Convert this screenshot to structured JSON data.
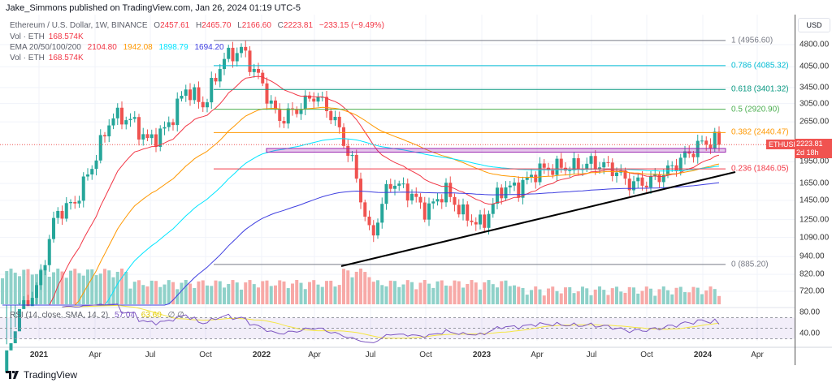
{
  "publisher_line": "Jake_Simmons published on TradingView.com, Jan 26, 2024 01:19 UTC-5",
  "legend": {
    "symbol": "Ethereum / U.S. Dollar, 1W, BINANCE",
    "ohlc": {
      "O": "2457.61",
      "H": "2465.70",
      "L": "2166.60",
      "C": "2223.81"
    },
    "change": "−233.15 (−9.49%)",
    "vol_label": "Vol · ETH",
    "vol_value": "168.574K",
    "ema_label": "EMA 20/50/100/200",
    "ema_values": [
      "2104.80",
      "1942.08",
      "1898.79",
      "1694.20"
    ],
    "vol2_label": "Vol · ETH",
    "vol2_value": "168.574K",
    "rsi_label": "RSI (14, close, SMA, 14, 2)",
    "rsi_values": [
      "57.04",
      "63.60"
    ],
    "rsi_icons": "∅ ∅"
  },
  "colors": {
    "up": "#26a69a",
    "down": "#ef5350",
    "ema20": "#f23645",
    "ema50": "#ff9800",
    "ema100": "#00e5ff",
    "ema200": "#3f3fe0",
    "rsi": "#7e57c2",
    "rsi_sma": "#f5e642"
  },
  "price_axis": {
    "currency": "USD",
    "ticks": [
      "4800.00",
      "4050.00",
      "3450.00",
      "3050.00",
      "2650.00",
      "1950.00",
      "1650.00",
      "1450.00",
      "1250.00",
      "1090.00",
      "940.00",
      "820.00",
      "720.00"
    ]
  },
  "rsi_axis": {
    "ticks": [
      "80.00",
      "40.00"
    ]
  },
  "time_axis": [
    "2021",
    "Apr",
    "Jul",
    "Oct",
    "2022",
    "Apr",
    "Jul",
    "Oct",
    "2023",
    "Apr",
    "Jul",
    "Oct",
    "2024",
    "Apr"
  ],
  "last_price": {
    "symbol": "ETHUSD",
    "price": "2223.81",
    "countdown": "2d 18h"
  },
  "fib_levels": [
    {
      "label": "1 (4956.60)",
      "price": 4956.6,
      "color": "#787b86"
    },
    {
      "label": "0.786 (4085.32)",
      "price": 4085.32,
      "color": "#00bcd4"
    },
    {
      "label": "0.618 (3401.32)",
      "price": 3401.32,
      "color": "#089981"
    },
    {
      "label": "0.5 (2920.90)",
      "price": 2920.9,
      "color": "#4caf50"
    },
    {
      "label": "0.382 (2440.47)",
      "price": 2440.47,
      "color": "#ff9800"
    },
    {
      "label": "0.236 (1846.05)",
      "price": 1846.05,
      "color": "#f23645"
    },
    {
      "label": "0 (885.20)",
      "price": 885.2,
      "color": "#787b86"
    }
  ],
  "footer_brand": "TradingView",
  "chart_data": {
    "type": "candlestick",
    "interval": "1W",
    "scale": "log",
    "y_range": [
      650,
      5200
    ],
    "monthly_close_approx": {
      "months": [
        "2020-10",
        "2020-11",
        "2020-12",
        "2021-01",
        "2021-02",
        "2021-03",
        "2021-04",
        "2021-05",
        "2021-06",
        "2021-07",
        "2021-08",
        "2021-09",
        "2021-10",
        "2021-11",
        "2021-12",
        "2022-01",
        "2022-02",
        "2022-03",
        "2022-04",
        "2022-05",
        "2022-06",
        "2022-07",
        "2022-08",
        "2022-09",
        "2022-10",
        "2022-11",
        "2022-12",
        "2023-01",
        "2023-02",
        "2023-03",
        "2023-04",
        "2023-05",
        "2023-06",
        "2023-07",
        "2023-08",
        "2023-09",
        "2023-10",
        "2023-11",
        "2023-12",
        "2024-01"
      ],
      "close": [
        386,
        612,
        737,
        1312,
        1417,
        1918,
        2773,
        2707,
        2275,
        2536,
        3433,
        3001,
        4288,
        4631,
        3683,
        2688,
        2920,
        3282,
        2727,
        1942,
        1067,
        1679,
        1553,
        1328,
        1572,
        1295,
        1196,
        1585,
        1605,
        1822,
        1870,
        1874,
        1934,
        1857,
        1646,
        1671,
        1815,
        2052,
        2282,
        2224
      ]
    },
    "support_zone": [
      2100,
      2160
    ],
    "trendline": {
      "from": {
        "date": "2022-06",
        "price": 885
      },
      "to": {
        "date": "2024-01",
        "price": 1720
      }
    }
  }
}
